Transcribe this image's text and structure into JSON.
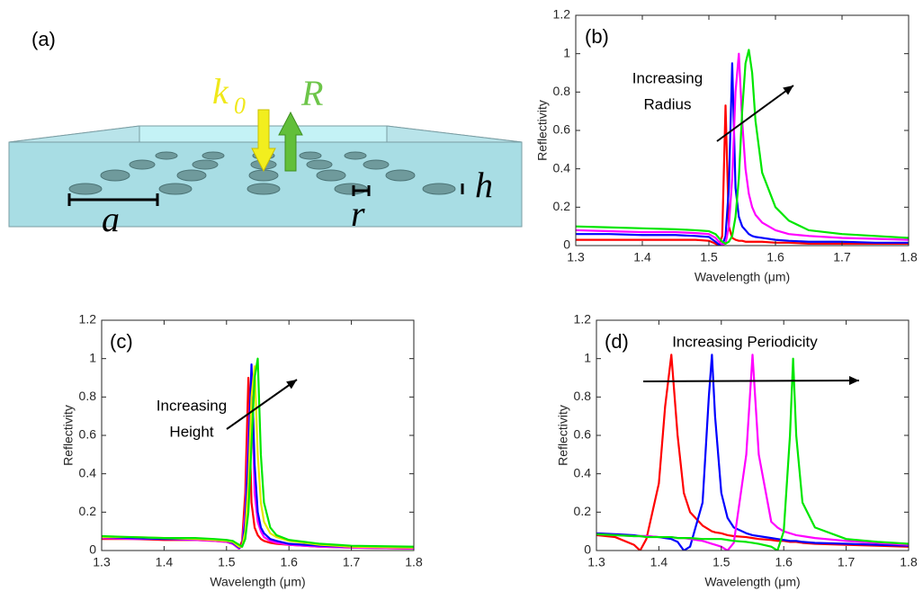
{
  "diagram": {
    "panel_label": "(a)",
    "k_label": "k",
    "k_subscript": "0",
    "r_arrow_label": "R",
    "period_label": "a",
    "radius_label": "r",
    "height_label": "h"
  },
  "chart_data": [
    {
      "type": "line",
      "panel_label": "(b)",
      "annotation": [
        "Increasing",
        "Radius"
      ],
      "xlabel": "Wavelength (μm)",
      "ylabel": "Reflectivity",
      "xlim": [
        1.3,
        1.8
      ],
      "xticks": [
        1.3,
        1.4,
        1.5,
        1.6,
        1.7,
        1.8
      ],
      "ylim": [
        0,
        1.2
      ],
      "yticks": [
        0,
        0.2,
        0.4,
        0.6,
        0.8,
        1,
        1.2
      ],
      "x": [
        1.3,
        1.35,
        1.4,
        1.45,
        1.48,
        1.5,
        1.51,
        1.515,
        1.52,
        1.525,
        1.53,
        1.535,
        1.54,
        1.545,
        1.55,
        1.555,
        1.56,
        1.565,
        1.57,
        1.58,
        1.6,
        1.62,
        1.65,
        1.7,
        1.75,
        1.8
      ],
      "series": [
        {
          "color": "#ff0000",
          "values": [
            0.03,
            0.03,
            0.03,
            0.03,
            0.03,
            0.025,
            0.01,
            0,
            0.05,
            0.73,
            0.1,
            0.04,
            0.03,
            0.025,
            0.025,
            0.02,
            0.02,
            0.02,
            0.02,
            0.02,
            0.015,
            0.015,
            0.01,
            0.01,
            0.01,
            0.01
          ]
        },
        {
          "color": "#0000ff",
          "values": [
            0.06,
            0.06,
            0.055,
            0.055,
            0.05,
            0.045,
            0.02,
            0.005,
            0,
            0.05,
            0.3,
            0.95,
            0.3,
            0.15,
            0.1,
            0.08,
            0.06,
            0.05,
            0.045,
            0.04,
            0.03,
            0.025,
            0.02,
            0.02,
            0.015,
            0.015
          ]
        },
        {
          "color": "#ff00ff",
          "values": [
            0.08,
            0.075,
            0.07,
            0.07,
            0.065,
            0.06,
            0.04,
            0.02,
            0.005,
            0.01,
            0.1,
            0.35,
            0.8,
            1.0,
            0.65,
            0.4,
            0.27,
            0.2,
            0.16,
            0.12,
            0.08,
            0.06,
            0.05,
            0.04,
            0.035,
            0.03
          ]
        },
        {
          "color": "#00e600",
          "values": [
            0.1,
            0.095,
            0.09,
            0.085,
            0.08,
            0.075,
            0.06,
            0.04,
            0.02,
            0.01,
            0.02,
            0.05,
            0.15,
            0.35,
            0.7,
            0.95,
            1.02,
            0.9,
            0.65,
            0.38,
            0.2,
            0.13,
            0.08,
            0.06,
            0.05,
            0.04
          ]
        }
      ]
    },
    {
      "type": "line",
      "panel_label": "(c)",
      "annotation": [
        "Increasing",
        "Height"
      ],
      "xlabel": "Wavelength (μm)",
      "ylabel": "Reflectivity",
      "xlim": [
        1.3,
        1.8
      ],
      "xticks": [
        1.3,
        1.4,
        1.5,
        1.6,
        1.7,
        1.8
      ],
      "ylim": [
        0,
        1.2
      ],
      "yticks": [
        0,
        0.2,
        0.4,
        0.6,
        0.8,
        1,
        1.2
      ],
      "x": [
        1.3,
        1.35,
        1.4,
        1.45,
        1.48,
        1.5,
        1.51,
        1.52,
        1.525,
        1.53,
        1.535,
        1.54,
        1.545,
        1.55,
        1.555,
        1.56,
        1.57,
        1.58,
        1.6,
        1.65,
        1.7,
        1.8
      ],
      "series": [
        {
          "color": "#ff0000",
          "values": [
            0.06,
            0.06,
            0.055,
            0.055,
            0.05,
            0.045,
            0.035,
            0.01,
            0.05,
            0.3,
            0.9,
            0.25,
            0.12,
            0.08,
            0.06,
            0.05,
            0.04,
            0.035,
            0.03,
            0.02,
            0.015,
            0.01
          ]
        },
        {
          "color": "#ff00ff",
          "values": [
            0.065,
            0.06,
            0.06,
            0.055,
            0.05,
            0.045,
            0.035,
            0.01,
            0.03,
            0.2,
            0.6,
            0.93,
            0.3,
            0.15,
            0.1,
            0.07,
            0.05,
            0.04,
            0.03,
            0.02,
            0.015,
            0.01
          ]
        },
        {
          "color": "#0000ff",
          "values": [
            0.07,
            0.065,
            0.06,
            0.06,
            0.055,
            0.05,
            0.04,
            0.015,
            0.02,
            0.15,
            0.5,
            0.97,
            0.45,
            0.2,
            0.12,
            0.09,
            0.06,
            0.05,
            0.035,
            0.025,
            0.02,
            0.015
          ]
        },
        {
          "color": "#e6e600",
          "values": [
            0.07,
            0.07,
            0.065,
            0.06,
            0.055,
            0.05,
            0.045,
            0.02,
            0.02,
            0.1,
            0.35,
            0.8,
            0.96,
            0.5,
            0.25,
            0.15,
            0.09,
            0.07,
            0.05,
            0.03,
            0.02,
            0.015
          ]
        },
        {
          "color": "#00e600",
          "values": [
            0.075,
            0.07,
            0.065,
            0.065,
            0.06,
            0.055,
            0.05,
            0.03,
            0.02,
            0.06,
            0.2,
            0.55,
            0.9,
            1.0,
            0.5,
            0.25,
            0.12,
            0.08,
            0.055,
            0.035,
            0.025,
            0.02
          ]
        }
      ]
    },
    {
      "type": "line",
      "panel_label": "(d)",
      "annotation": [
        "Increasing Periodicity"
      ],
      "xlabel": "Wavelength (μm)",
      "ylabel": "Reflectivity",
      "xlim": [
        1.3,
        1.8
      ],
      "xticks": [
        1.3,
        1.4,
        1.5,
        1.6,
        1.7,
        1.8
      ],
      "ylim": [
        0,
        1.2
      ],
      "yticks": [
        0,
        0.2,
        0.4,
        0.6,
        0.8,
        1,
        1.2
      ],
      "x": [
        1.3,
        1.33,
        1.36,
        1.37,
        1.38,
        1.4,
        1.41,
        1.42,
        1.43,
        1.44,
        1.45,
        1.47,
        1.48,
        1.485,
        1.49,
        1.5,
        1.51,
        1.52,
        1.54,
        1.55,
        1.56,
        1.58,
        1.59,
        1.6,
        1.61,
        1.615,
        1.62,
        1.63,
        1.65,
        1.7,
        1.75,
        1.8
      ],
      "series": [
        {
          "color": "#ff0000",
          "values": [
            0.08,
            0.07,
            0.03,
            0,
            0.06,
            0.35,
            0.75,
            1.02,
            0.6,
            0.3,
            0.2,
            0.13,
            0.11,
            0.1,
            0.095,
            0.09,
            0.08,
            0.075,
            0.07,
            0.065,
            0.06,
            0.055,
            0.05,
            0.05,
            0.045,
            0.045,
            0.045,
            0.04,
            0.035,
            0.03,
            0.025,
            0.02
          ]
        },
        {
          "color": "#0000ff",
          "values": [
            0.09,
            0.085,
            0.08,
            0.075,
            0.075,
            0.07,
            0.065,
            0.06,
            0.045,
            0,
            0.02,
            0.25,
            0.8,
            1.02,
            0.7,
            0.3,
            0.17,
            0.12,
            0.09,
            0.08,
            0.075,
            0.065,
            0.06,
            0.055,
            0.05,
            0.05,
            0.05,
            0.045,
            0.04,
            0.035,
            0.03,
            0.025
          ]
        },
        {
          "color": "#ff00ff",
          "values": [
            0.085,
            0.08,
            0.075,
            0.075,
            0.075,
            0.07,
            0.07,
            0.07,
            0.065,
            0.065,
            0.06,
            0.05,
            0.04,
            0.035,
            0.03,
            0.02,
            0,
            0.04,
            0.5,
            1.02,
            0.5,
            0.15,
            0.12,
            0.1,
            0.09,
            0.085,
            0.08,
            0.075,
            0.065,
            0.05,
            0.04,
            0.03
          ]
        },
        {
          "color": "#00e600",
          "values": [
            0.085,
            0.08,
            0.075,
            0.075,
            0.07,
            0.07,
            0.07,
            0.07,
            0.065,
            0.065,
            0.065,
            0.06,
            0.06,
            0.06,
            0.06,
            0.06,
            0.055,
            0.05,
            0.045,
            0.04,
            0.035,
            0.02,
            0,
            0.1,
            0.6,
            1.0,
            0.6,
            0.25,
            0.12,
            0.06,
            0.045,
            0.035
          ]
        }
      ]
    }
  ]
}
